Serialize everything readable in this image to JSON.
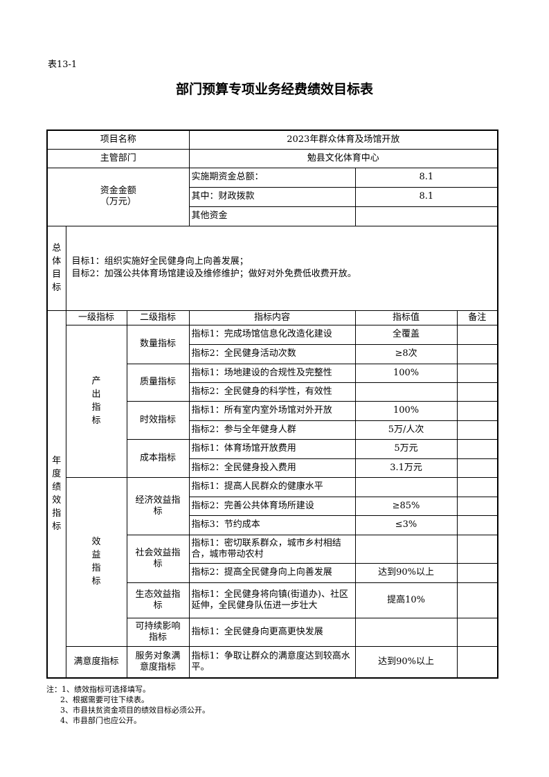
{
  "table_code": "表13-1",
  "title": "部门预算专项业务经费绩效目标表",
  "project": {
    "label": "项目名称",
    "value": "2023年群众体育及场馆开放"
  },
  "department": {
    "label": "主管部门",
    "value": "勉县文化体育中心"
  },
  "funds": {
    "label": "资金金额",
    "unit": "（万元）",
    "rows": [
      {
        "label": "实施期资金总额：",
        "value": "8.1"
      },
      {
        "label": "其中：财政拨款",
        "value": "8.1"
      },
      {
        "label": "其他资金",
        "value": ""
      }
    ]
  },
  "overall_goal": {
    "label": "总体目标",
    "lines": [
      "目标1：组织实施好全民健身向上向善发展；",
      "目标2：加强公共体育场馆建设及维修维护；做好对外免费低收费开放。"
    ]
  },
  "annual": {
    "label": "年度绩效指标",
    "headers": [
      "一级指标",
      "二级指标",
      "指标内容",
      "指标值",
      "备注"
    ],
    "groups": [
      {
        "level1": "产出指标",
        "subs": [
          {
            "level2": "数量指标",
            "items": [
              {
                "content": "指标1：完成场馆信息化改造化建设",
                "value": "全覆盖",
                "note": ""
              },
              {
                "content": "指标2：全民健身活动次数",
                "value": "≥8次",
                "note": ""
              }
            ]
          },
          {
            "level2": "质量指标",
            "items": [
              {
                "content": "指标1：场地建设的合规性及完整性",
                "value": "100%",
                "note": ""
              },
              {
                "content": "指标2：全民健身的科学性，有效性",
                "value": "",
                "note": ""
              }
            ]
          },
          {
            "level2": "时效指标",
            "items": [
              {
                "content": "指标1：所有室内室外场馆对外开放",
                "value": "100%",
                "note": ""
              },
              {
                "content": "指标2：参与全年健身人群",
                "value": "5万/人次",
                "note": ""
              }
            ]
          },
          {
            "level2": "成本指标",
            "items": [
              {
                "content": "指标1：体育场馆开放费用",
                "value": "5万元",
                "note": ""
              },
              {
                "content": "指标2：全民健身投入费用",
                "value": "3.1万元",
                "note": ""
              }
            ]
          }
        ]
      },
      {
        "level1": "效益指标",
        "subs": [
          {
            "level2": "经济效益指标",
            "items": [
              {
                "content": "指标1：提高人民群众的健康水平",
                "value": "",
                "note": ""
              },
              {
                "content": "指标2：完善公共体育场所建设",
                "value": "≥85%",
                "note": ""
              },
              {
                "content": "指标3：节约成本",
                "value": "≤3%",
                "note": ""
              }
            ]
          },
          {
            "level2": "社会效益指标",
            "items": [
              {
                "content": "指标1：密切联系群众，城市乡村相结合，城市带动农村",
                "value": "",
                "note": ""
              },
              {
                "content": "指标2：提高全民健身向上向善发展",
                "value": "达到90%以上",
                "note": ""
              }
            ]
          },
          {
            "level2": "生态效益指标",
            "items": [
              {
                "content": "指标1：全民健身将向镇(街道办)、社区延伸，全民健身队伍进一步壮大",
                "value": "提高10%",
                "note": ""
              }
            ]
          },
          {
            "level2": "可持续影响指标",
            "items": [
              {
                "content": "指标1：全民健身向更高更快发展",
                "value": "",
                "note": ""
              }
            ]
          }
        ]
      },
      {
        "level1": "满意度指标",
        "subs": [
          {
            "level2": "服务对象满意度指标",
            "items": [
              {
                "content": "指标1：争取让群众的满意度达到较高水平。",
                "value": "达到90%以上",
                "note": ""
              }
            ]
          }
        ]
      }
    ]
  },
  "notes": [
    "注：1、绩效指标可选择填写。",
    "2、根据需要可往下续表。",
    "3、市县扶贫资金项目的绩效目标必须公开。",
    "4、市县部门也应公开。"
  ]
}
